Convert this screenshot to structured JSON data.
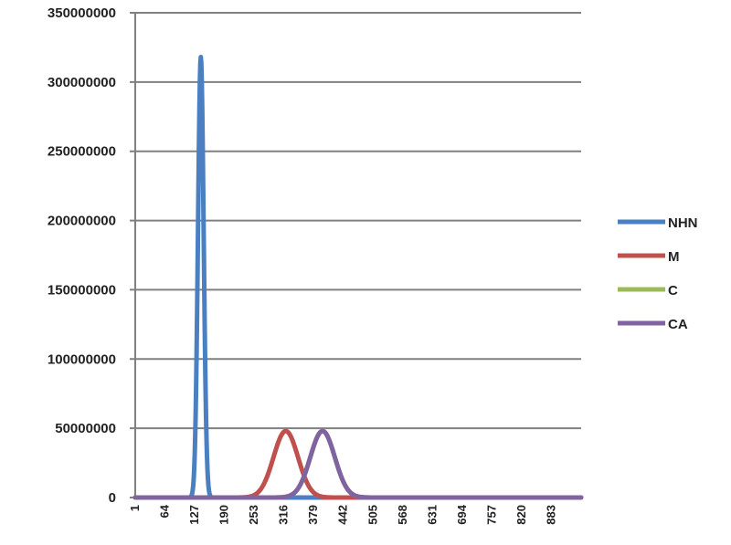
{
  "chart_data": {
    "type": "line",
    "title": "",
    "xlabel": "",
    "ylabel": "",
    "ylim": [
      0,
      350000000
    ],
    "xlim": [
      1,
      946
    ],
    "grid": "horizontal",
    "legend_position": "right",
    "y_ticks": [
      "0",
      "50000000",
      "100000000",
      "150000000",
      "200000000",
      "250000000",
      "300000000",
      "350000000"
    ],
    "y_tick_values": [
      0,
      50000000,
      100000000,
      150000000,
      200000000,
      250000000,
      300000000,
      350000000
    ],
    "x_ticks": [
      "1",
      "64",
      "127",
      "190",
      "253",
      "316",
      "379",
      "442",
      "505",
      "568",
      "631",
      "694",
      "757",
      "820",
      "883"
    ],
    "x_tick_values": [
      1,
      64,
      127,
      190,
      253,
      316,
      379,
      442,
      505,
      568,
      631,
      694,
      757,
      820,
      883
    ],
    "series": [
      {
        "name": "NHN",
        "color": "#4a7fc1",
        "shape": "gaussian",
        "peak_x": 140,
        "peak_y": 318000000,
        "width": 6
      },
      {
        "name": "M",
        "color": "#c0504d",
        "shape": "gaussian",
        "peak_x": 320,
        "peak_y": 48000000,
        "width": 26
      },
      {
        "name": "C",
        "color": "#9bbb59",
        "shape": "gaussian",
        "peak_x": 398,
        "peak_y": 48000000,
        "width": 26
      },
      {
        "name": "CA",
        "color": "#8064a2",
        "shape": "gaussian",
        "peak_x": 398,
        "peak_y": 48000000,
        "width": 26
      }
    ]
  }
}
